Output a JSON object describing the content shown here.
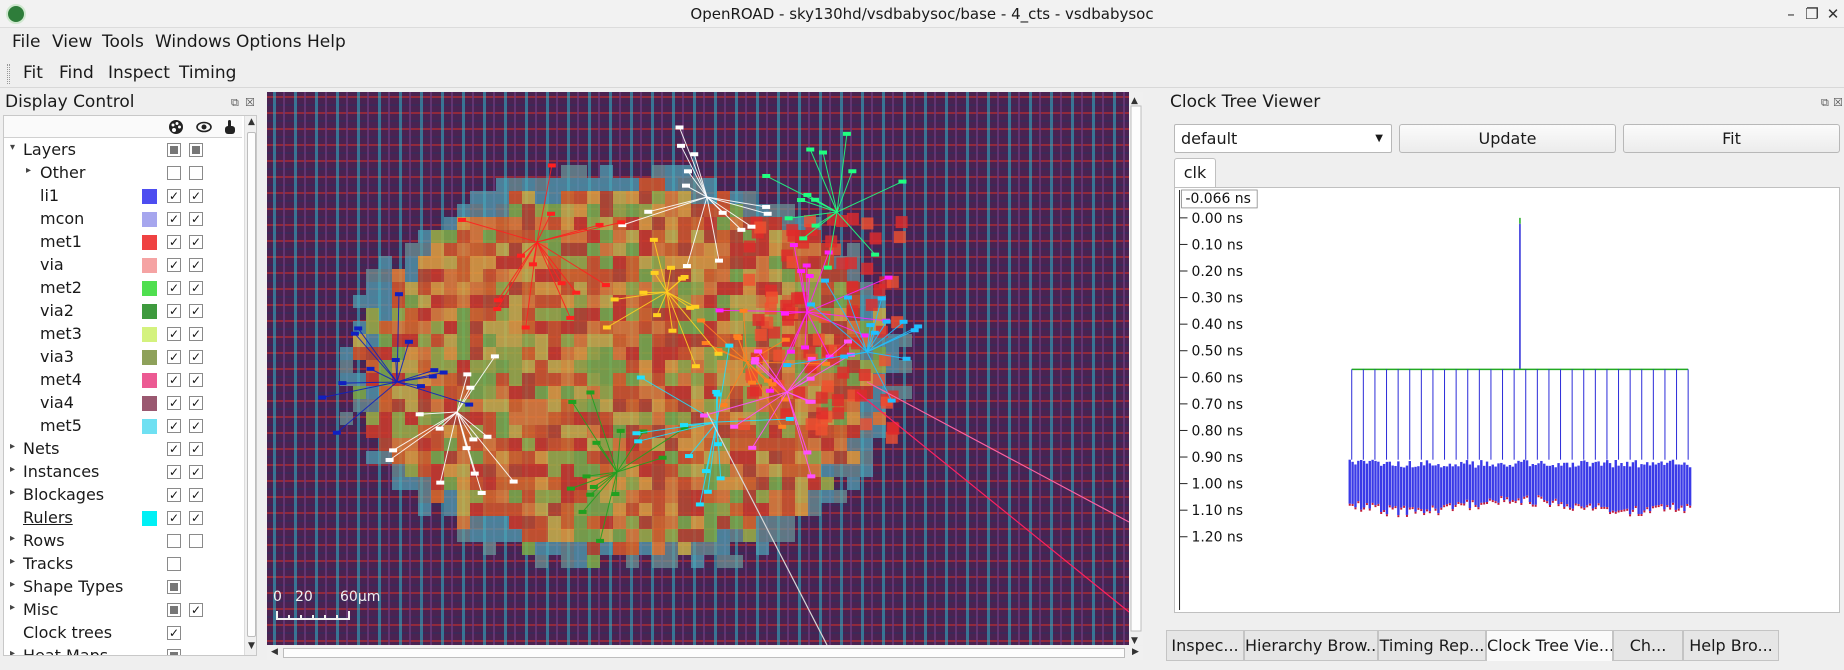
{
  "window": {
    "title": "OpenROAD - sky130hd/vsdbabysoc/base - 4_cts - vsdbabysoc"
  },
  "menubar": [
    "File",
    "View",
    "Tools",
    "Windows",
    "Options",
    "Help"
  ],
  "toolbar": [
    "Fit",
    "Find",
    "Inspect",
    "Timing"
  ],
  "display_control": {
    "title": "Display Control",
    "header_icons": [
      "palette-icon",
      "eye-icon",
      "pointer-icon"
    ],
    "rows": [
      {
        "label": "Layers",
        "arrow": "down",
        "indent": 0,
        "visible": "partial",
        "selectable": "partial"
      },
      {
        "label": "Other",
        "arrow": "right",
        "indent": 1,
        "visible": "off",
        "selectable": "off"
      },
      {
        "label": "li1",
        "indent": 2,
        "color": "#4d4df0",
        "visible": "on",
        "selectable": "on"
      },
      {
        "label": "mcon",
        "indent": 2,
        "color": "#a6a6ee",
        "visible": "on",
        "selectable": "on"
      },
      {
        "label": "met1",
        "indent": 2,
        "color": "#ef4242",
        "visible": "on",
        "selectable": "on"
      },
      {
        "label": "via",
        "indent": 2,
        "color": "#f5a3a3",
        "visible": "on",
        "selectable": "on"
      },
      {
        "label": "met2",
        "indent": 2,
        "color": "#4fdf4f",
        "visible": "on",
        "selectable": "on"
      },
      {
        "label": "via2",
        "indent": 2,
        "color": "#3e9a3e",
        "visible": "on",
        "selectable": "on"
      },
      {
        "label": "met3",
        "indent": 2,
        "color": "#d4f27e",
        "visible": "on",
        "selectable": "on"
      },
      {
        "label": "via3",
        "indent": 2,
        "color": "#8ea15a",
        "visible": "on",
        "selectable": "on"
      },
      {
        "label": "met4",
        "indent": 2,
        "color": "#ec5a93",
        "visible": "on",
        "selectable": "on"
      },
      {
        "label": "via4",
        "indent": 2,
        "color": "#9a5870",
        "visible": "on",
        "selectable": "on"
      },
      {
        "label": "met5",
        "indent": 2,
        "color": "#6fe0f2",
        "visible": "on",
        "selectable": "on"
      },
      {
        "label": "Nets",
        "arrow": "right",
        "indent": 0,
        "visible": "on",
        "selectable": "on"
      },
      {
        "label": "Instances",
        "arrow": "right",
        "indent": 0,
        "visible": "on",
        "selectable": "on"
      },
      {
        "label": "Blockages",
        "arrow": "right",
        "indent": 0,
        "visible": "on",
        "selectable": "on"
      },
      {
        "label": "Rulers",
        "indent": 0,
        "color": "#00f0f5",
        "visible": "on",
        "selectable": "on",
        "underline": true
      },
      {
        "label": "Rows",
        "arrow": "right",
        "indent": 0,
        "visible": "off",
        "selectable": "off"
      },
      {
        "label": "Tracks",
        "arrow": "right",
        "indent": 0,
        "visible": "off"
      },
      {
        "label": "Shape Types",
        "arrow": "right",
        "indent": 0,
        "visible": "partial"
      },
      {
        "label": "Misc",
        "arrow": "right",
        "indent": 0,
        "visible": "partial",
        "selectable": "on"
      },
      {
        "label": "Clock trees",
        "indent": 0,
        "visible": "on"
      },
      {
        "label": "Heat Maps",
        "arrow": "right",
        "indent": 0,
        "visible": "partial"
      }
    ]
  },
  "layout": {
    "scale_bar": {
      "ticks": [
        "0",
        "20",
        "60μm"
      ]
    }
  },
  "clock_tree_viewer": {
    "title": "Clock Tree Viewer",
    "corner": "default",
    "update_label": "Update",
    "fit_label": "Fit",
    "tab": "clk",
    "top_label": "-0.066 ns",
    "time_axis": [
      "0.00 ns",
      "0.10 ns",
      "0.20 ns",
      "0.30 ns",
      "0.40 ns",
      "0.50 ns",
      "0.60 ns",
      "0.70 ns",
      "0.80 ns",
      "0.90 ns",
      "1.00 ns",
      "1.10 ns",
      "1.20 ns"
    ],
    "sink_count": 60,
    "colors": {
      "root": "#22aa22",
      "branch": "#2a2ad8",
      "sink": "#3a3ae8"
    }
  },
  "bottom_tabs": [
    {
      "label": "Inspec...",
      "active": false
    },
    {
      "label": "Hierarchy Brow...",
      "active": false
    },
    {
      "label": "Timing Rep...",
      "active": false
    },
    {
      "label": "Clock Tree Vie...",
      "active": true
    },
    {
      "label": "Ch...",
      "active": false
    },
    {
      "label": "Help Bro...",
      "active": false
    }
  ]
}
